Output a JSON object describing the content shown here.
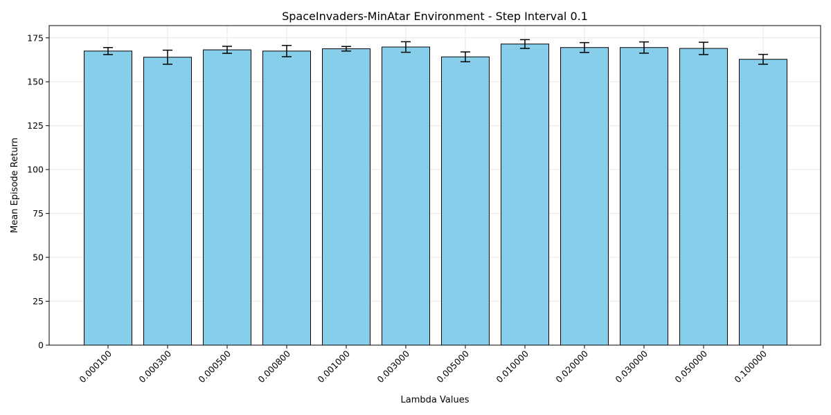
{
  "chart_data": {
    "type": "bar",
    "title": "SpaceInvaders-MinAtar Environment - Step Interval 0.1",
    "xlabel": "Lambda Values",
    "ylabel": "Mean Episode Return",
    "categories": [
      "0.000100",
      "0.000300",
      "0.000500",
      "0.000800",
      "0.001000",
      "0.003000",
      "0.005000",
      "0.010000",
      "0.020000",
      "0.030000",
      "0.050000",
      "0.100000"
    ],
    "values": [
      167.5,
      164.0,
      168.2,
      167.5,
      168.8,
      169.8,
      164.2,
      171.5,
      169.5,
      169.5,
      169.0,
      162.8
    ],
    "errors": [
      2.0,
      4.0,
      2.0,
      3.2,
      1.3,
      3.0,
      2.8,
      2.5,
      2.8,
      3.2,
      3.5,
      2.8
    ],
    "ylim": [
      0,
      182
    ],
    "yticks": [
      0,
      25,
      50,
      75,
      100,
      125,
      150,
      175
    ],
    "grid": true,
    "bar_color": "#87ceeb",
    "edge_color": "#000000"
  }
}
